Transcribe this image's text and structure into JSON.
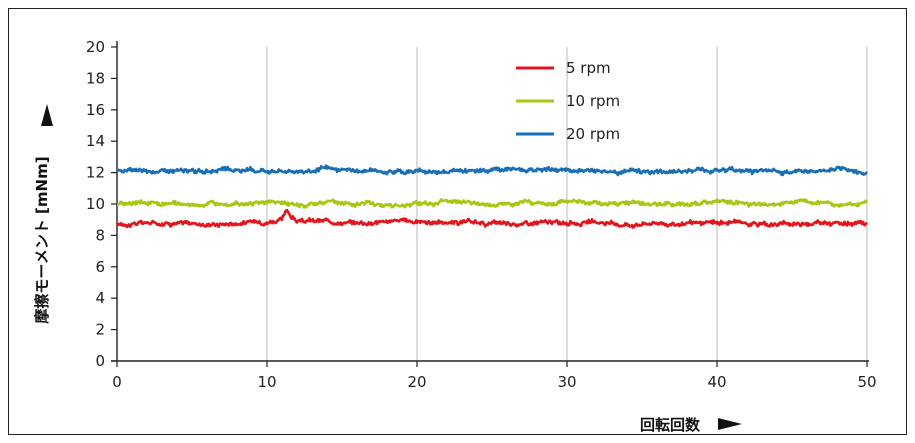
{
  "chart_data": {
    "type": "line",
    "xlabel": "回転回数",
    "ylabel": "摩擦モーメント [mNm]",
    "xlim": [
      0,
      50
    ],
    "ylim": [
      0,
      20
    ],
    "x_ticks": [
      "0",
      "10",
      "20",
      "30",
      "40",
      "50"
    ],
    "y_ticks": [
      "0",
      "2",
      "4",
      "6",
      "8",
      "10",
      "12",
      "14",
      "16",
      "18",
      "20"
    ],
    "grid": "vertical",
    "legend_position": "top-center",
    "series": [
      {
        "name": "5 rpm",
        "color": "#e3141b",
        "x": [
          0,
          2,
          4,
          6,
          8,
          10,
          11,
          11.3,
          12,
          14,
          16,
          18,
          20,
          22,
          24,
          26,
          28,
          30,
          32,
          34,
          36,
          38,
          40,
          42,
          44,
          46,
          48,
          50
        ],
        "y": [
          8.7,
          8.8,
          8.8,
          8.7,
          8.8,
          8.9,
          9.0,
          9.5,
          8.9,
          8.9,
          8.8,
          8.9,
          8.9,
          8.8,
          8.8,
          8.7,
          8.8,
          8.8,
          8.8,
          8.7,
          8.8,
          8.7,
          8.8,
          8.8,
          8.7,
          8.8,
          8.8,
          8.7
        ]
      },
      {
        "name": "10 rpm",
        "color": "#a9c614",
        "x": [
          0,
          2,
          4,
          6,
          8,
          10,
          12,
          14,
          16,
          18,
          20,
          22,
          24,
          26,
          28,
          30,
          32,
          34,
          36,
          38,
          40,
          42,
          44,
          46,
          48,
          50
        ],
        "y": [
          10.0,
          10.1,
          10.0,
          10.0,
          10.0,
          10.1,
          10.0,
          10.1,
          10.0,
          10.0,
          10.0,
          10.1,
          10.0,
          10.0,
          10.0,
          10.1,
          10.0,
          10.0,
          10.0,
          10.0,
          10.1,
          10.0,
          10.0,
          10.1,
          10.0,
          10.0
        ]
      },
      {
        "name": "20 rpm",
        "color": "#1a6eb5",
        "x": [
          0,
          2,
          4,
          6,
          8,
          10,
          12,
          14,
          16,
          18,
          20,
          22,
          24,
          26,
          28,
          30,
          32,
          34,
          36,
          38,
          40,
          42,
          44,
          46,
          48,
          50
        ],
        "y": [
          12.1,
          12.1,
          12.1,
          12.1,
          12.1,
          12.2,
          12.1,
          12.2,
          12.1,
          12.1,
          12.1,
          12.1,
          12.1,
          12.2,
          12.1,
          12.2,
          12.1,
          12.1,
          12.1,
          12.1,
          12.2,
          12.1,
          12.1,
          12.1,
          12.2,
          12.0
        ]
      }
    ]
  }
}
